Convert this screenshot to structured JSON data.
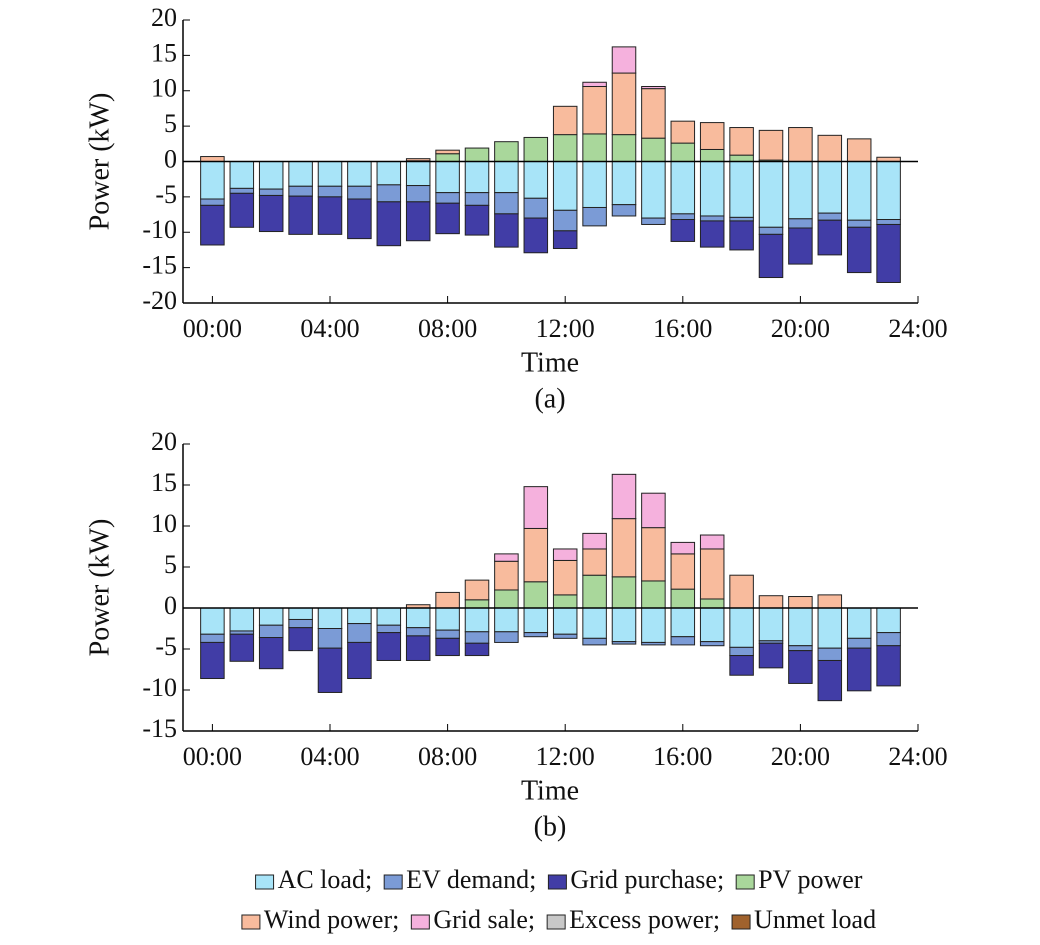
{
  "chart_data": [
    {
      "type": "bar",
      "stacked": true,
      "caption": "(a)",
      "xlabel": "Time",
      "ylabel": "Power (kW)",
      "x": [
        0,
        1,
        2,
        3,
        4,
        5,
        6,
        7,
        8,
        9,
        10,
        11,
        12,
        13,
        14,
        15,
        16,
        17,
        18,
        19,
        20,
        21,
        22,
        23
      ],
      "xlim": [
        -1,
        24
      ],
      "xticks": [
        {
          "value": 0,
          "label": "00:00"
        },
        {
          "value": 4,
          "label": "04:00"
        },
        {
          "value": 8,
          "label": "08:00"
        },
        {
          "value": 12,
          "label": "12:00"
        },
        {
          "value": 16,
          "label": "16:00"
        },
        {
          "value": 20,
          "label": "20:00"
        },
        {
          "value": 24,
          "label": "24:00"
        }
      ],
      "ylim": [
        -20,
        20
      ],
      "yticks": [
        -20,
        -15,
        -10,
        -5,
        0,
        5,
        10,
        15,
        20
      ],
      "series": [
        {
          "name": "AC load;",
          "color": "#a8e4f8",
          "values": [
            -5.3,
            -3.8,
            -3.9,
            -3.5,
            -3.5,
            -3.5,
            -3.3,
            -3.4,
            -4.4,
            -4.4,
            -4.4,
            -5.2,
            -6.9,
            -6.5,
            -6.1,
            -8.0,
            -7.4,
            -7.7,
            -7.9,
            -9.3,
            -8.1,
            -7.3,
            -8.3,
            -8.2
          ]
        },
        {
          "name": "EV demand;",
          "color": "#7b9bd6",
          "values": [
            -0.9,
            -0.7,
            -0.9,
            -1.4,
            -1.5,
            -1.8,
            -2.4,
            -2.3,
            -1.5,
            -1.8,
            -3.0,
            -2.8,
            -2.9,
            -2.6,
            -1.6,
            -0.9,
            -0.8,
            -0.7,
            -0.5,
            -1.0,
            -1.3,
            -1.0,
            -1.0,
            -0.7
          ]
        },
        {
          "name": "Grid purchase;",
          "color": "#413da6",
          "values": [
            -5.6,
            -4.8,
            -5.1,
            -5.4,
            -5.3,
            -5.6,
            -6.2,
            -5.5,
            -4.3,
            -4.2,
            -4.7,
            -4.9,
            -2.5,
            0,
            0,
            0,
            -3.1,
            -3.7,
            -4.1,
            -6.1,
            -5.1,
            -4.9,
            -6.4,
            -8.2
          ]
        },
        {
          "name": "PV power",
          "color": "#a9d79b",
          "values": [
            0,
            0,
            0,
            0,
            0,
            0,
            0,
            0.1,
            1.1,
            1.9,
            2.8,
            3.4,
            3.8,
            3.9,
            3.8,
            3.3,
            2.6,
            1.7,
            0.9,
            0.2,
            0,
            0,
            0,
            0
          ]
        },
        {
          "name": "Wind power;",
          "color": "#f8bb9d",
          "values": [
            0.7,
            0,
            0,
            0,
            0,
            0,
            0,
            0.3,
            0.5,
            0,
            0,
            0,
            4.0,
            6.7,
            8.7,
            7.0,
            3.1,
            3.8,
            3.9,
            4.2,
            4.8,
            3.7,
            3.2,
            0.6
          ]
        },
        {
          "name": "Grid sale;",
          "color": "#f5b1dd",
          "values": [
            0,
            0,
            0,
            0,
            0,
            0,
            0,
            0,
            0,
            0,
            0,
            0,
            0,
            0.6,
            3.7,
            0.3,
            0,
            0,
            0,
            0,
            0,
            0,
            0,
            0
          ]
        },
        {
          "name": "Excess power;",
          "color": "#c8c8c8",
          "values": [
            0,
            0,
            0,
            0,
            0,
            0,
            0,
            0,
            0,
            0,
            0,
            0,
            0,
            0,
            0,
            0,
            0,
            0,
            0,
            0,
            0,
            0,
            0,
            0
          ]
        },
        {
          "name": "Unmet load",
          "color": "#a0622d",
          "values": [
            0,
            0,
            0,
            0,
            0,
            0,
            0,
            0,
            0,
            0,
            0,
            0,
            0,
            0,
            0,
            0,
            0,
            0,
            0,
            0,
            0,
            0,
            0,
            0
          ]
        }
      ]
    },
    {
      "type": "bar",
      "stacked": true,
      "caption": "(b)",
      "xlabel": "Time",
      "ylabel": "Power (kW)",
      "x": [
        0,
        1,
        2,
        3,
        4,
        5,
        6,
        7,
        8,
        9,
        10,
        11,
        12,
        13,
        14,
        15,
        16,
        17,
        18,
        19,
        20,
        21,
        22,
        23
      ],
      "xlim": [
        -1,
        24
      ],
      "xticks": [
        {
          "value": 0,
          "label": "00:00"
        },
        {
          "value": 4,
          "label": "04:00"
        },
        {
          "value": 8,
          "label": "08:00"
        },
        {
          "value": 12,
          "label": "12:00"
        },
        {
          "value": 16,
          "label": "16:00"
        },
        {
          "value": 20,
          "label": "20:00"
        },
        {
          "value": 24,
          "label": "24:00"
        }
      ],
      "ylim": [
        -15,
        20
      ],
      "yticks": [
        -15,
        -10,
        -5,
        0,
        5,
        10,
        15,
        20
      ],
      "series": [
        {
          "name": "AC load;",
          "color": "#a8e4f8",
          "values": [
            -3.2,
            -2.8,
            -2.1,
            -1.4,
            -2.5,
            -1.9,
            -2.1,
            -2.4,
            -2.7,
            -2.9,
            -2.9,
            -3.0,
            -3.2,
            -3.7,
            -4.1,
            -4.2,
            -3.5,
            -4.1,
            -4.8,
            -4.0,
            -4.6,
            -4.9,
            -3.7,
            -3.0
          ]
        },
        {
          "name": "EV demand;",
          "color": "#7b9bd6",
          "values": [
            -1.0,
            -0.4,
            -1.5,
            -1.0,
            -2.4,
            -2.3,
            -0.9,
            -1.0,
            -1.0,
            -1.4,
            -1.3,
            -0.5,
            -0.5,
            -0.8,
            -0.3,
            -0.3,
            -1.0,
            -0.5,
            -1.0,
            -0.3,
            -0.6,
            -1.5,
            -1.2,
            -1.6
          ]
        },
        {
          "name": "Grid purchase;",
          "color": "#413da6",
          "values": [
            -4.4,
            -3.3,
            -3.8,
            -2.8,
            -5.4,
            -4.4,
            -3.4,
            -3.0,
            -2.1,
            -1.5,
            0,
            0,
            0,
            0,
            0,
            0,
            0,
            0,
            -2.4,
            -3.0,
            -4.0,
            -4.9,
            -5.2,
            -4.9
          ]
        },
        {
          "name": "PV power",
          "color": "#a9d79b",
          "values": [
            0,
            0,
            0,
            0,
            0,
            0,
            0,
            0,
            0,
            1.0,
            2.2,
            3.2,
            1.6,
            4.0,
            3.8,
            3.3,
            2.3,
            1.1,
            0,
            0,
            0,
            0,
            0,
            0
          ]
        },
        {
          "name": "Wind power;",
          "color": "#f8bb9d",
          "values": [
            0,
            0,
            0,
            0,
            0,
            0,
            0,
            0.4,
            1.9,
            2.4,
            3.5,
            6.5,
            4.2,
            3.2,
            7.1,
            6.5,
            4.3,
            6.1,
            4.0,
            1.5,
            1.4,
            1.6,
            0,
            0
          ]
        },
        {
          "name": "Grid sale;",
          "color": "#f5b1dd",
          "values": [
            0,
            0,
            0,
            0,
            0,
            0,
            0,
            0,
            0,
            0,
            0.9,
            5.1,
            1.4,
            1.9,
            5.4,
            4.2,
            1.4,
            1.7,
            0,
            0,
            0,
            0,
            0,
            0
          ]
        },
        {
          "name": "Excess power;",
          "color": "#c8c8c8",
          "values": [
            0,
            0,
            0,
            0,
            0,
            0,
            0,
            0,
            0,
            0,
            0,
            0,
            0,
            0,
            0,
            0,
            0,
            0,
            0,
            0,
            0,
            0,
            0,
            0
          ]
        },
        {
          "name": "Unmet load",
          "color": "#a0622d",
          "values": [
            0,
            0,
            0,
            0,
            0,
            0,
            0,
            0,
            0,
            0,
            0,
            0,
            0,
            0,
            0,
            0,
            0,
            0,
            0,
            0,
            0,
            0,
            0,
            0
          ]
        }
      ]
    }
  ]
}
